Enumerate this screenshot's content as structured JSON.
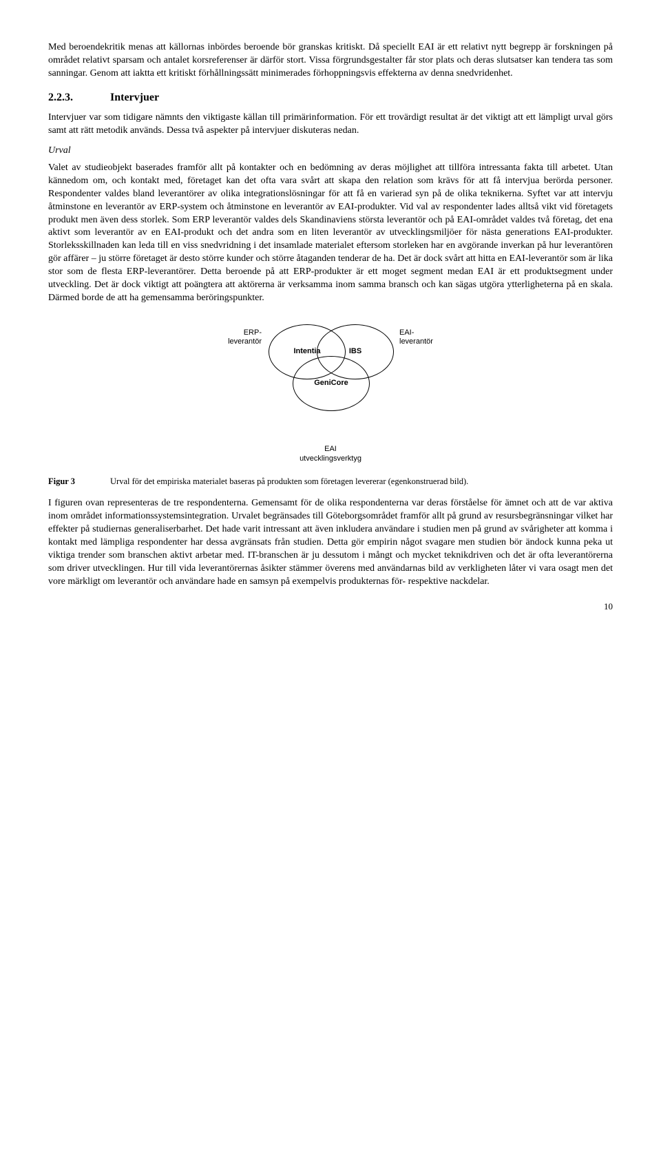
{
  "para1": "Med beroendekritik menas att källornas inbördes beroende bör granskas kritiskt. Då speciellt EAI är ett relativt nytt begrepp är forskningen på området relativt sparsam och antalet korsreferenser är därför stort. Vissa förgrundsgestalter får stor plats och deras slutsatser kan tendera tas som sanningar. Genom att iaktta ett kritiskt förhållningssätt minimerades förhoppningsvis effekterna av denna snedvridenhet.",
  "section": {
    "number": "2.2.3.",
    "title": "Intervjuer"
  },
  "para2": "Intervjuer var som tidigare nämnts den viktigaste källan till primärinformation. För ett trovärdigt resultat är det viktigt att ett lämpligt urval görs samt att rätt metodik används. Dessa två aspekter på intervjuer diskuteras nedan.",
  "subheading1": "Urval",
  "para3": "Valet av studieobjekt baserades framför allt på kontakter och en bedömning av deras möjlighet att tillföra intressanta fakta till arbetet. Utan kännedom om, och kontakt med, företaget kan det ofta vara svårt att skapa den relation som krävs för att få intervjua berörda personer. Respondenter valdes bland leverantörer av olika integrationslösningar för att få en varierad syn på de olika teknikerna. Syftet var att intervju åtminstone en leverantör av ERP-system och åtminstone en leverantör av EAI-produkter. Vid val av respondenter lades alltså vikt vid företagets produkt men även dess storlek. Som ERP leverantör valdes dels Skandinaviens största leverantör och på EAI-området valdes två företag, det ena aktivt som leverantör av en EAI-produkt och det andra som en liten leverantör av utvecklingsmiljöer för nästa generations EAI-produkter. Storleksskillnaden kan leda till en viss snedvridning i det insamlade materialet eftersom storleken har en avgörande inverkan på hur leverantören gör affärer – ju större företaget är desto större kunder och större åtaganden tenderar de ha. Det är dock svårt att hitta en EAI-leverantör som är lika stor som de flesta ERP-leverantörer. Detta beroende på att ERP-produkter är ett moget segment medan EAI är ett produktsegment under utveckling. Det är dock viktigt att poängtera att aktörerna är verksamma inom samma bransch och kan sägas utgöra ytterligheterna på en skala. Därmed borde de att ha gemensamma beröringspunkter.",
  "diagram": {
    "left_label_line1": "ERP-",
    "left_label_line2": "leverantör",
    "right_label_line1": "EAI-",
    "right_label_line2": "leverantör",
    "ellipse1": "Intentia",
    "ellipse2": "IBS",
    "ellipse3": "GeniCore",
    "caption_line1": "EAI",
    "caption_line2": "utvecklingsverktyg"
  },
  "figure": {
    "label": "Figur 3",
    "text": "Urval för det empiriska materialet baseras på produkten som företagen levererar (egenkonstruerad bild)."
  },
  "para4": "I figuren ovan representeras de tre respondenterna. Gemensamt för de olika respondenterna var deras förståelse för ämnet och att de var aktiva inom området informationssystemsintegration. Urvalet begränsades till Göteborgsområdet framför allt på grund av resursbegränsningar vilket har effekter på studiernas generaliserbarhet. Det hade varit intressant att även inkludera användare i studien men på grund av svårigheter att komma i kontakt med lämpliga respondenter har dessa avgränsats från studien. Detta gör empirin något svagare men studien bör ändock kunna peka ut viktiga trender som branschen aktivt arbetar med. IT-branschen är ju dessutom i mångt och mycket teknikdriven och det är ofta leverantörerna som driver utvecklingen. Hur till vida leverantörernas åsikter stämmer överens med användarnas bild av verkligheten låter vi vara osagt men det vore märkligt om leverantör och användare hade en samsyn på exempelvis produkternas för- respektive nackdelar.",
  "page_number": "10"
}
